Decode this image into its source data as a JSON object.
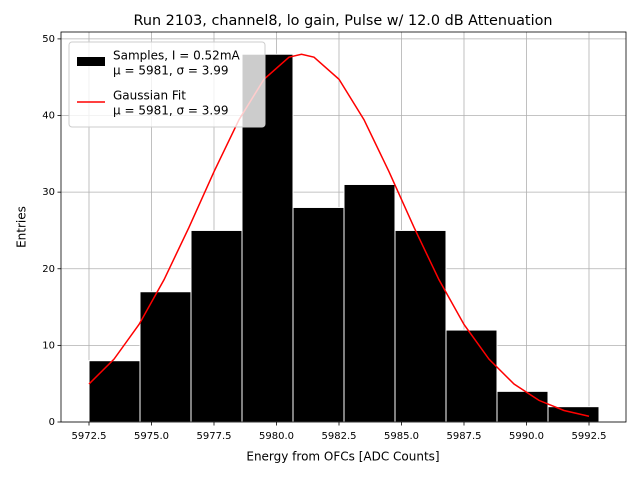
{
  "chart_data": {
    "type": "histogram",
    "title": "Run 2103, channel8, lo gain, Pulse w/ 12.0 dB Attenuation",
    "x_label": "Energy from OFCs [ADC Counts]",
    "y_label": "Entries",
    "bins": [
      5972.5,
      5974.54,
      5976.58,
      5978.62,
      5980.66,
      5982.7,
      5984.74,
      5986.78,
      5988.82,
      5990.86,
      5992.9
    ],
    "series": [
      {
        "name": "Samples, I = 0.52mA",
        "stats": "μ = 5981, σ = 3.99",
        "color": "#000000",
        "values": [
          8,
          17,
          25,
          48,
          28,
          31,
          25,
          12,
          4,
          2
        ]
      },
      {
        "name": "Gaussian Fit",
        "stats": "μ = 5981, σ = 3.99",
        "color": "#ff0000",
        "type": "line",
        "x": [
          5972.5,
          5973.5,
          5974.5,
          5975.5,
          5976.5,
          5977.5,
          5978.5,
          5979.5,
          5980.5,
          5981,
          5981.5,
          5982.5,
          5983.5,
          5984.5,
          5985.5,
          5986.5,
          5987.5,
          5988.5,
          5989.5,
          5990.5,
          5991.5,
          5992.5
        ],
        "values": [
          4.96,
          8.2,
          12.73,
          18.56,
          25.41,
          32.67,
          39.45,
          44.73,
          47.62,
          48,
          47.62,
          44.73,
          39.45,
          32.67,
          25.41,
          18.56,
          12.73,
          8.2,
          4.96,
          2.82,
          1.5,
          0.75
        ]
      }
    ],
    "xlim": [
      5971.38,
      5993.98
    ],
    "ylim": [
      0,
      50.9
    ],
    "xticks": [
      5972.5,
      {
        "value": 5975,
        "label": "5975.0"
      },
      5977.5,
      {
        "value": 5980,
        "label": "5980.0"
      },
      5982.5,
      {
        "value": 5985,
        "label": "5985.0"
      },
      5987.5,
      {
        "value": 5990,
        "label": "5990.0"
      },
      5992.5
    ],
    "yticks": [
      0,
      10,
      20,
      30,
      40,
      50
    ],
    "grid": true,
    "legend": "upper left"
  }
}
